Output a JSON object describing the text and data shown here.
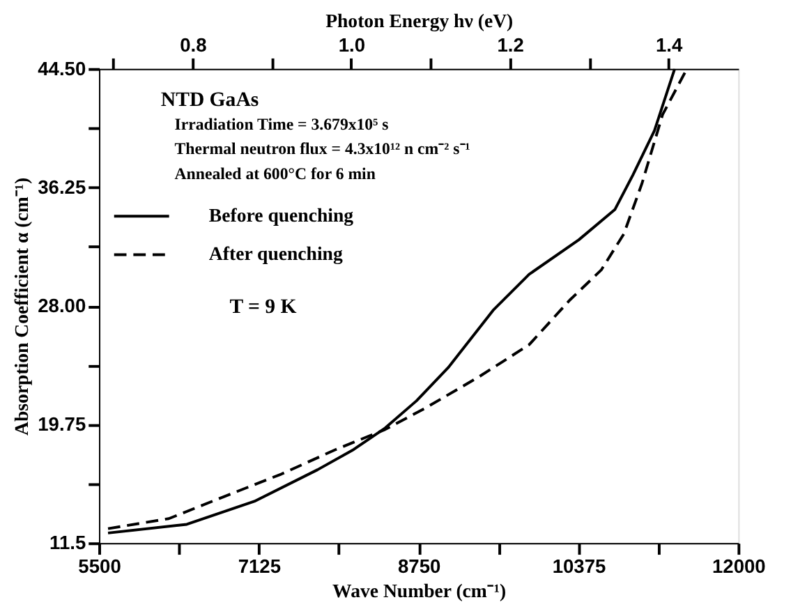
{
  "chart_data": {
    "type": "line",
    "xlabel": "Wave Number (cm⁻¹)",
    "ylabel": "Absorption Coefficient α (cm⁻¹)",
    "x2label": "Photon Energy hν (eV)",
    "xlim": [
      5500,
      12000
    ],
    "xticks": [
      5500,
      {
        "value": 6312.5,
        "label": null
      },
      7125,
      {
        "value": 7937.5,
        "label": null
      },
      8750,
      {
        "value": 9562.5,
        "label": null
      },
      10375,
      {
        "value": 11187.5,
        "label": null
      },
      12000
    ],
    "ylim": [
      11.5,
      44.5
    ],
    "yticks": [
      11.5,
      {
        "value": 15.625,
        "label": null
      },
      {
        "value": 19.75,
        "label": "19.75"
      },
      {
        "value": 23.875,
        "label": null
      },
      {
        "value": 28.0,
        "label": "28.00"
      },
      {
        "value": 32.125,
        "label": null
      },
      {
        "value": 36.25,
        "label": "36.25"
      },
      {
        "value": 40.375,
        "label": null
      },
      {
        "value": 44.5,
        "label": "44.50"
      }
    ],
    "x2lim": [
      0.682,
      1.488
    ],
    "x2ticks": [
      {
        "value": 0.7,
        "label": null
      },
      0.8,
      {
        "value": 0.9,
        "label": null
      },
      {
        "value": 1.0,
        "label": "1.0"
      },
      {
        "value": 1.1,
        "label": null
      },
      1.2,
      {
        "value": 1.3,
        "label": null
      },
      1.4
    ],
    "grid": false,
    "legend": "top left",
    "marker": "none",
    "annotations": [
      "NTD GaAs",
      "Irradiation Time = 3.679x10⁵ s",
      "Thermal neutron flux = 4.3x10¹² n cm⁻² s⁻¹",
      "Annealed at 600°C for 6 min",
      "T = 9 K"
    ],
    "series": [
      {
        "name": "Before quenching",
        "color": "#000000",
        "line_style": "solid",
        "x": [
          5592,
          6393,
          7080,
          7722,
          8088,
          8409,
          8729,
          9050,
          9279,
          9508,
          9874,
          10379,
          10745,
          10928,
          11148,
          11354
        ],
        "values": [
          12.2,
          12.8,
          14.4,
          16.6,
          18.0,
          19.5,
          21.4,
          23.7,
          25.7,
          27.7,
          30.2,
          32.6,
          34.7,
          37.1,
          40.2,
          44.5
        ]
      },
      {
        "name": "After quenching",
        "color": "#000000",
        "line_style": "dashed",
        "x": [
          5592,
          6210,
          6760,
          7355,
          7905,
          8409,
          8821,
          9371,
          9874,
          10286,
          10607,
          10836,
          11020,
          11230,
          11478
        ],
        "values": [
          12.5,
          13.2,
          14.7,
          16.3,
          18.0,
          19.4,
          20.9,
          23.1,
          25.3,
          28.4,
          30.5,
          33.0,
          36.5,
          41.3,
          44.5
        ]
      }
    ]
  }
}
